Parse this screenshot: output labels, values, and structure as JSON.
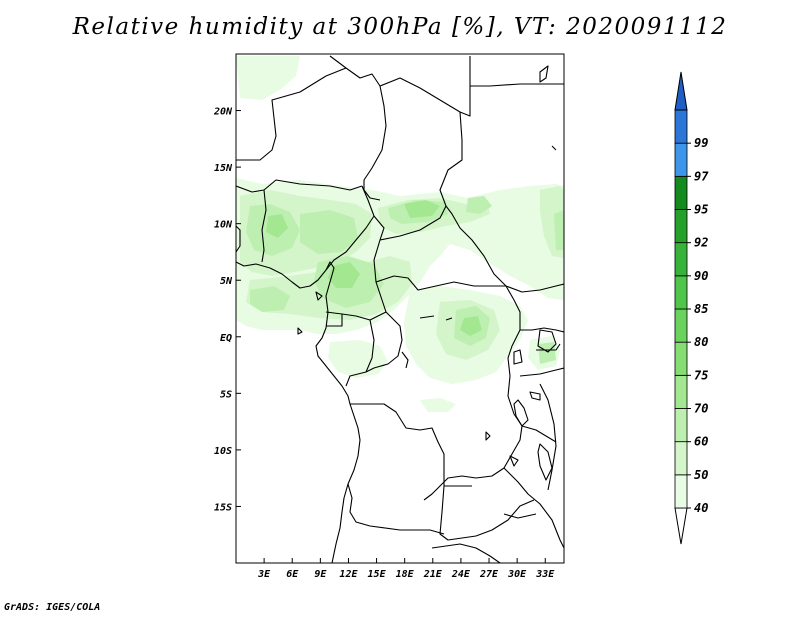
{
  "title": "Relative humidity at 300hPa [%], VT: 2020091112",
  "footer": "GrADS: IGES/COLA",
  "map": {
    "lon_range": [
      0,
      35
    ],
    "lat_range": [
      -20,
      25
    ],
    "lon_ticks": [
      {
        "value": 3,
        "label": "3E"
      },
      {
        "value": 6,
        "label": "6E"
      },
      {
        "value": 9,
        "label": "9E"
      },
      {
        "value": 12,
        "label": "12E"
      },
      {
        "value": 15,
        "label": "15E"
      },
      {
        "value": 18,
        "label": "18E"
      },
      {
        "value": 21,
        "label": "21E"
      },
      {
        "value": 24,
        "label": "24E"
      },
      {
        "value": 27,
        "label": "27E"
      },
      {
        "value": 30,
        "label": "30E"
      },
      {
        "value": 33,
        "label": "33E"
      }
    ],
    "lat_ticks": [
      {
        "value": 20,
        "label": "20N"
      },
      {
        "value": 15,
        "label": "15N"
      },
      {
        "value": 10,
        "label": "10N"
      },
      {
        "value": 5,
        "label": "5N"
      },
      {
        "value": 0,
        "label": "EQ"
      },
      {
        "value": -5,
        "label": "5S"
      },
      {
        "value": -10,
        "label": "10S"
      },
      {
        "value": -15,
        "label": "15S"
      }
    ]
  },
  "colorbar": {
    "levels": [
      "40",
      "50",
      "60",
      "70",
      "75",
      "80",
      "85",
      "90",
      "92",
      "95",
      "97",
      "99"
    ],
    "colors": [
      "#e8fbe3",
      "#d3f5c9",
      "#bdf0b0",
      "#a3e891",
      "#86de73",
      "#6ad35d",
      "#4fc64a",
      "#37b33a",
      "#24a02b",
      "#158a1f",
      "#3e96ea",
      "#2c76d8",
      "#1f5ec4"
    ],
    "bottom_cap_color": "#ffffff",
    "top_cap_color": "#1f5ec4"
  },
  "humidity_colors": {
    "h40": "#e8fbe3",
    "h50": "#d3f5c9",
    "h60": "#bdf0b0",
    "h70": "#a3e891"
  }
}
